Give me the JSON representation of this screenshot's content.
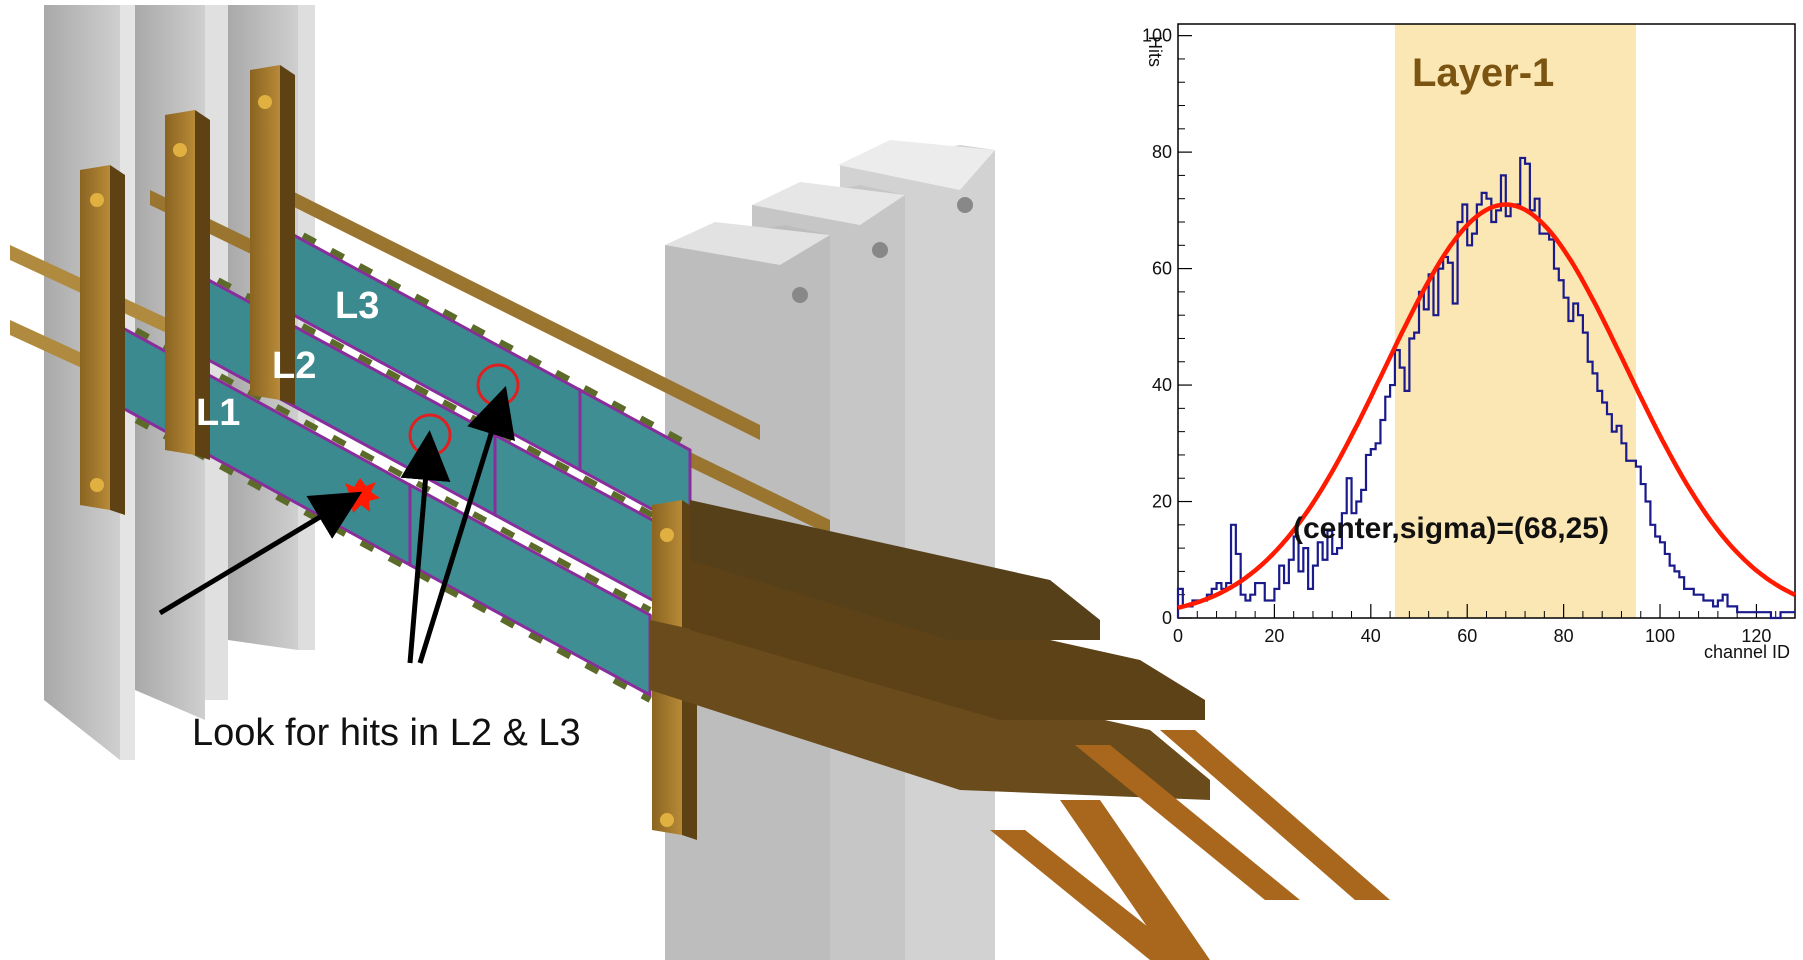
{
  "detector": {
    "layer_labels": [
      "L1",
      "L2",
      "L3"
    ],
    "caption": "Look for hits in L2 & L3"
  },
  "chart_data": {
    "type": "histogram",
    "title": "",
    "band_label": "Layer-1",
    "fit_label": "(center,sigma)=(68,25)",
    "xlabel": "channel ID",
    "ylabel": "Hits",
    "xlim": [
      0,
      128
    ],
    "ylim": [
      0,
      102
    ],
    "x_ticks": [
      0,
      20,
      40,
      60,
      80,
      100,
      120
    ],
    "y_ticks": [
      0,
      20,
      40,
      60,
      80,
      100
    ],
    "highlight_band": [
      45,
      95
    ],
    "fit": {
      "function": "gaussian",
      "center": 68,
      "sigma": 25,
      "amplitude": 71
    },
    "bin_width": 1,
    "values": [
      5,
      2,
      2,
      3,
      3,
      3,
      4,
      5,
      6,
      5,
      6,
      16,
      11,
      4,
      3,
      4,
      6,
      6,
      3,
      3,
      5,
      9,
      6,
      10,
      14,
      8,
      12,
      5,
      9,
      13,
      10,
      15,
      11,
      12,
      18,
      24,
      18,
      20,
      22,
      28,
      29,
      30,
      34,
      38,
      40,
      46,
      43,
      39,
      48,
      49,
      56,
      53,
      59,
      52,
      60,
      62,
      61,
      54,
      68,
      71,
      64,
      66,
      71,
      73,
      72,
      68,
      70,
      76,
      69,
      71,
      71,
      79,
      78,
      70,
      72,
      66,
      66,
      65,
      60,
      58,
      55,
      51,
      54,
      52,
      49,
      44,
      42,
      39,
      37,
      35,
      32,
      33,
      30,
      27,
      27,
      26,
      23,
      20,
      16,
      14,
      13,
      11,
      9,
      8,
      7,
      5,
      5,
      4,
      4,
      3,
      3,
      2,
      3,
      4,
      2,
      2,
      1,
      1,
      1,
      1,
      1,
      1,
      1,
      0,
      0,
      1,
      1,
      1
    ]
  },
  "colors": {
    "histogram": "#1a1a8c",
    "fit_curve": "#ff1a00",
    "band": "#fbe7b4",
    "sensor": "#3b8a90",
    "sensor_border": "#8a2d9c",
    "frame": "#7a5a1f",
    "flex_cable": "#6a4b1c",
    "flex_tail": "#a9671d",
    "pillar": "#c3c3c3",
    "hit": "#ff1a00",
    "circle": "#e02020"
  }
}
